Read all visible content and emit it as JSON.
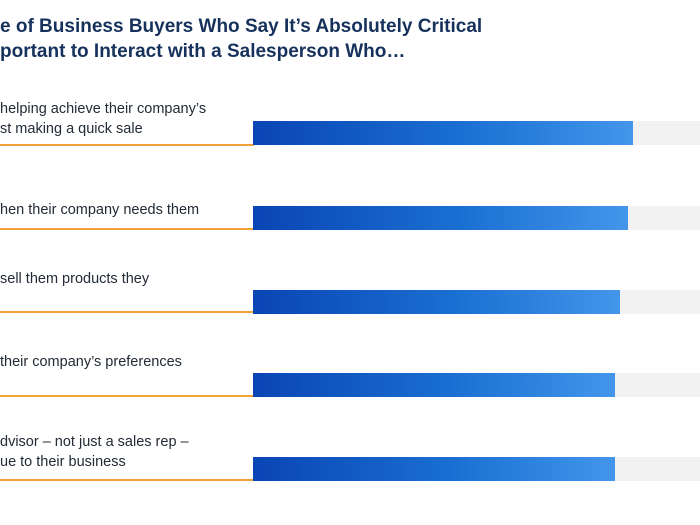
{
  "title": {
    "line1": "e of Business Buyers Who Say It’s Absolutely Critical",
    "line2": "portant to Interact with a Salesperson Who…"
  },
  "colors": {
    "title": "#16325c",
    "bar_start": "#0a45b4",
    "bar_end": "#4396ea",
    "track": "#f2f2f2",
    "rule": "#f2a03a"
  },
  "chart_data": {
    "type": "bar",
    "orientation": "horizontal",
    "value_labels_shown": false,
    "categories": [
      [
        "helping achieve their company’s",
        "st making a quick sale"
      ],
      [
        "hen their company needs them"
      ],
      [
        "sell them products they"
      ],
      [
        "their company’s preferences"
      ],
      [
        "dvisor – not just a sales rep –",
        "ue to their business"
      ]
    ],
    "values": [
      85,
      84,
      82,
      81,
      81
    ],
    "xlim": [
      0,
      100
    ],
    "grid": false,
    "legend": "none"
  }
}
